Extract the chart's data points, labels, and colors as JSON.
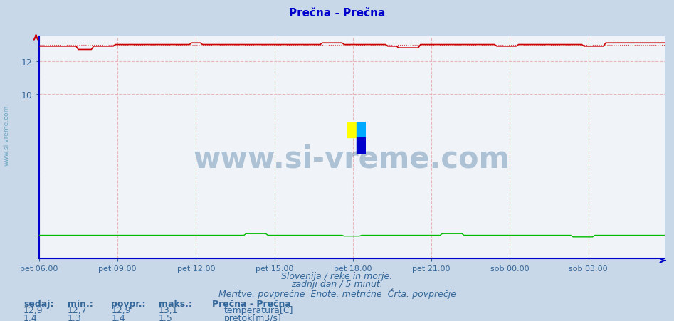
{
  "title": "Prečna - Prečna",
  "background_color": "#c8d8e8",
  "plot_bg_color": "#f0f4f8",
  "grid_color_v": "#e8b8b8",
  "grid_color_h": "#e8b8b8",
  "x_ticks_labels": [
    "pet 06:00",
    "pet 09:00",
    "pet 12:00",
    "pet 15:00",
    "pet 18:00",
    "pet 21:00",
    "sob 00:00",
    "sob 03:00"
  ],
  "x_ticks_pos": [
    0,
    36,
    72,
    108,
    144,
    180,
    216,
    252
  ],
  "n_points": 288,
  "ylim_min": 0,
  "ylim_max": 13.5,
  "y_ticks": [
    10,
    12
  ],
  "temp_color": "#cc0000",
  "temp_avg_color": "#cc0000",
  "flow_color": "#00bb00",
  "axis_color": "#0000cc",
  "tick_color": "#336699",
  "title_color": "#0000cc",
  "text_color": "#336699",
  "watermark_text": "www.si-vreme.com",
  "watermark_color": "#336699",
  "subtitle1": "Slovenija / reke in morje.",
  "subtitle2": "zadnji dan / 5 minut.",
  "subtitle3": "Meritve: povprečne  Enote: metrične  Črta: povprečje",
  "label_sedaj": "sedaj:",
  "label_min": "min.:",
  "label_povpr": "povpr.:",
  "label_maks": "maks.:",
  "legend_title": "Prečna - Prečna",
  "legend_temp": "temperatura[C]",
  "legend_flow": "pretok[m3/s]",
  "temp_sedaj": "12,9",
  "temp_min": "12,7",
  "temp_povpr": "12,9",
  "temp_maks": "13,1",
  "flow_sedaj": "1,4",
  "flow_min": "1,3",
  "flow_povpr": "1,4",
  "flow_maks": "1,5"
}
